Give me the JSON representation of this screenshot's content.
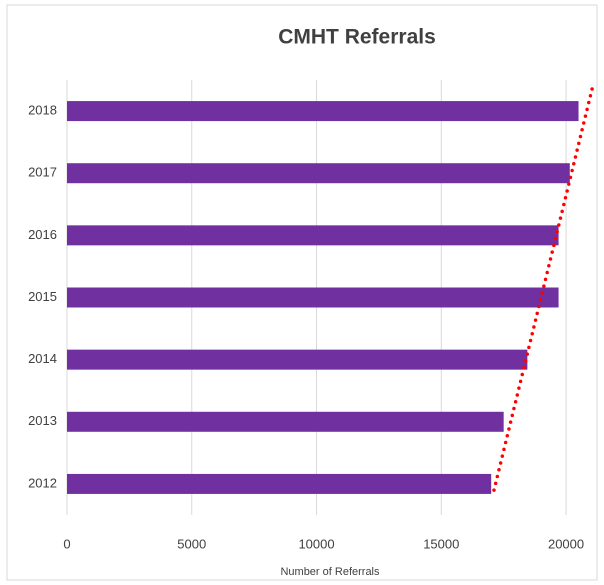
{
  "chart_data": {
    "type": "bar",
    "orientation": "horizontal",
    "title": "CMHT Referrals",
    "x_label": "Number of Referrals",
    "categories": [
      "2012",
      "2013",
      "2014",
      "2015",
      "2016",
      "2017",
      "2018"
    ],
    "values": [
      17000,
      17500,
      18450,
      19700,
      19700,
      20150,
      20500
    ],
    "color": "#7030a0",
    "trendline": {
      "type": "linear",
      "color": "#ff0000"
    },
    "xlim": [
      0,
      21000
    ],
    "xticks": [
      0,
      5000,
      10000,
      15000,
      20000
    ],
    "grid": true
  }
}
